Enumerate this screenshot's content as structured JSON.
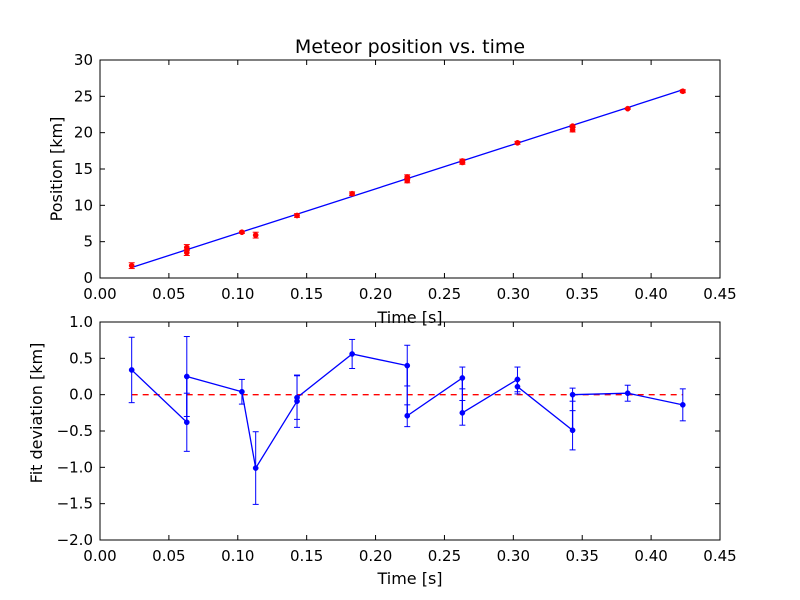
{
  "chart_data": [
    {
      "type": "scatter",
      "title": "Meteor position vs. time",
      "xlabel": "Time [s]",
      "ylabel": "Position [km]",
      "xlim": [
        0.0,
        0.45
      ],
      "ylim": [
        0,
        30
      ],
      "xticks": [
        "0.00",
        "0.05",
        "0.10",
        "0.15",
        "0.20",
        "0.25",
        "0.30",
        "0.35",
        "0.40",
        "0.45"
      ],
      "yticks": [
        "0",
        "5",
        "10",
        "15",
        "20",
        "25",
        "30"
      ],
      "grid": false,
      "series": [
        {
          "kind": "errorbar-points",
          "color": "#ff0000",
          "points": [
            {
              "x": 0.023,
              "y": 1.7,
              "err": 0.4
            },
            {
              "x": 0.063,
              "y": 3.5,
              "err": 0.4
            },
            {
              "x": 0.063,
              "y": 4.2,
              "err": 0.4
            },
            {
              "x": 0.103,
              "y": 6.3,
              "err": 0.15
            },
            {
              "x": 0.113,
              "y": 5.9,
              "err": 0.4
            },
            {
              "x": 0.143,
              "y": 8.6,
              "err": 0.25
            },
            {
              "x": 0.183,
              "y": 11.6,
              "err": 0.25
            },
            {
              "x": 0.223,
              "y": 13.4,
              "err": 0.3
            },
            {
              "x": 0.223,
              "y": 13.9,
              "err": 0.3
            },
            {
              "x": 0.263,
              "y": 15.9,
              "err": 0.25
            },
            {
              "x": 0.263,
              "y": 16.1,
              "err": 0.25
            },
            {
              "x": 0.303,
              "y": 18.6,
              "err": 0.2
            },
            {
              "x": 0.343,
              "y": 20.4,
              "err": 0.3
            },
            {
              "x": 0.343,
              "y": 20.9,
              "err": 0.15
            },
            {
              "x": 0.383,
              "y": 23.3,
              "err": 0.1
            },
            {
              "x": 0.423,
              "y": 25.7,
              "err": 0.2
            }
          ]
        },
        {
          "kind": "line",
          "color": "#0000ff",
          "x": [
            0.023,
            0.423
          ],
          "y": [
            1.45,
            25.9
          ]
        }
      ]
    },
    {
      "type": "line",
      "title": "",
      "xlabel": "Time [s]",
      "ylabel": "Fit deviation [km]",
      "xlim": [
        0.0,
        0.45
      ],
      "ylim": [
        -2.0,
        1.0
      ],
      "xticks": [
        "0.00",
        "0.05",
        "0.10",
        "0.15",
        "0.20",
        "0.25",
        "0.30",
        "0.35",
        "0.40",
        "0.45"
      ],
      "yticks": [
        "−2.0",
        "−1.5",
        "−1.0",
        "−0.5",
        "0.0",
        "0.5",
        "1.0"
      ],
      "grid": false,
      "series": [
        {
          "kind": "line-errorbars",
          "color": "#0000ff",
          "points": [
            {
              "x": 0.023,
              "y": 0.34,
              "err": 0.45
            },
            {
              "x": 0.063,
              "y": -0.38,
              "err": 0.4
            },
            {
              "x": 0.063,
              "y": 0.25,
              "err": 0.55
            },
            {
              "x": 0.103,
              "y": 0.04,
              "err": 0.17
            },
            {
              "x": 0.113,
              "y": -1.01,
              "err": 0.5
            },
            {
              "x": 0.143,
              "y": -0.09,
              "err": 0.36
            },
            {
              "x": 0.143,
              "y": -0.04,
              "err": 0.3
            },
            {
              "x": 0.183,
              "y": 0.56,
              "err": 0.2
            },
            {
              "x": 0.223,
              "y": 0.4,
              "err": 0.28
            },
            {
              "x": 0.223,
              "y": -0.29,
              "err": 0.15
            },
            {
              "x": 0.263,
              "y": 0.23,
              "err": 0.15
            },
            {
              "x": 0.263,
              "y": -0.25,
              "err": 0.17
            },
            {
              "x": 0.303,
              "y": 0.21,
              "err": 0.17
            },
            {
              "x": 0.303,
              "y": 0.11,
              "err": 0.1
            },
            {
              "x": 0.343,
              "y": -0.49,
              "err": 0.27
            },
            {
              "x": 0.343,
              "y": 0.0,
              "err": 0.09
            },
            {
              "x": 0.383,
              "y": 0.02,
              "err": 0.11
            },
            {
              "x": 0.423,
              "y": -0.14,
              "err": 0.22
            }
          ]
        },
        {
          "kind": "dashed-line",
          "color": "#ff0000",
          "x": [
            0.023,
            0.423
          ],
          "y": [
            0.0,
            0.0
          ]
        }
      ]
    }
  ]
}
